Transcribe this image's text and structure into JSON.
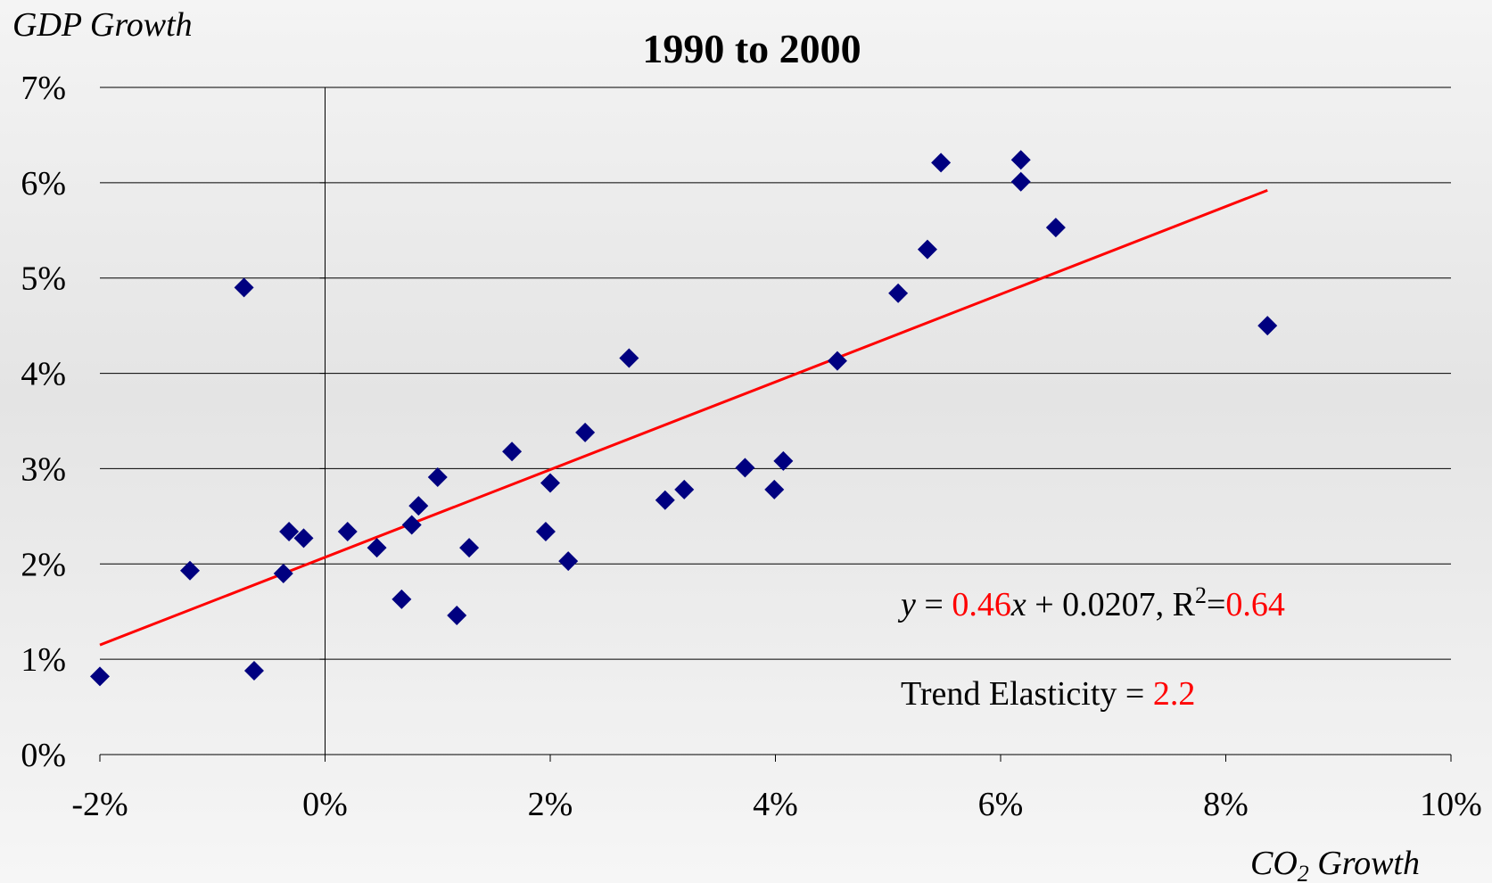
{
  "chart_data": {
    "type": "scatter",
    "title": "1990 to 2000",
    "y_label": "GDP Growth",
    "x_label": {
      "main": "CO",
      "sub": "2",
      "rest": " Growth"
    },
    "xlim": [
      -2,
      10
    ],
    "ylim": [
      0,
      7
    ],
    "xticks": [
      {
        "value": -2,
        "label": "-2%"
      },
      {
        "value": 0,
        "label": "0%"
      },
      {
        "value": 2,
        "label": "2%"
      },
      {
        "value": 4,
        "label": "4%"
      },
      {
        "value": 6,
        "label": "6%"
      },
      {
        "value": 8,
        "label": "8%"
      },
      {
        "value": 10,
        "label": "10%"
      }
    ],
    "yticks": [
      {
        "value": 0,
        "label": "0%"
      },
      {
        "value": 1,
        "label": "1%"
      },
      {
        "value": 2,
        "label": "2%"
      },
      {
        "value": 3,
        "label": "3%"
      },
      {
        "value": 4,
        "label": "4%"
      },
      {
        "value": 5,
        "label": "5%"
      },
      {
        "value": 6,
        "label": "6%"
      },
      {
        "value": 7,
        "label": "7%"
      }
    ],
    "grid": true,
    "series": [
      {
        "color": "#000080",
        "x": [
          -2.0,
          -1.2,
          -0.72,
          -0.63,
          -0.37,
          -0.32,
          -0.19,
          0.2,
          0.46,
          0.68,
          0.77,
          0.83,
          1.0,
          1.17,
          1.28,
          1.66,
          1.96,
          2.0,
          2.16,
          2.31,
          2.7,
          3.02,
          3.19,
          3.73,
          3.99,
          4.07,
          4.55,
          5.09,
          5.35,
          5.47,
          6.18,
          6.18,
          6.49,
          8.37
        ],
        "values": [
          0.82,
          1.93,
          4.9,
          0.88,
          1.9,
          2.34,
          2.27,
          2.34,
          2.17,
          1.63,
          2.41,
          2.61,
          2.91,
          1.46,
          2.17,
          3.18,
          2.34,
          2.85,
          2.03,
          3.38,
          4.16,
          2.67,
          2.78,
          3.01,
          2.78,
          3.08,
          4.13,
          4.84,
          5.3,
          6.21,
          6.24,
          6.01,
          5.53,
          4.5
        ]
      }
    ],
    "trendline": {
      "color": "#ff0000",
      "slope": 0.46,
      "intercept": 0.0207,
      "r_squared": 0.64
    },
    "equation_text": {
      "y": "y",
      "equals": " = ",
      "x": "x",
      "plus": " + ",
      "r": ", R",
      "sup": "2",
      "eq2": "="
    },
    "elasticity_label": "Trend Elasticity = ",
    "elasticity": 2.2
  }
}
